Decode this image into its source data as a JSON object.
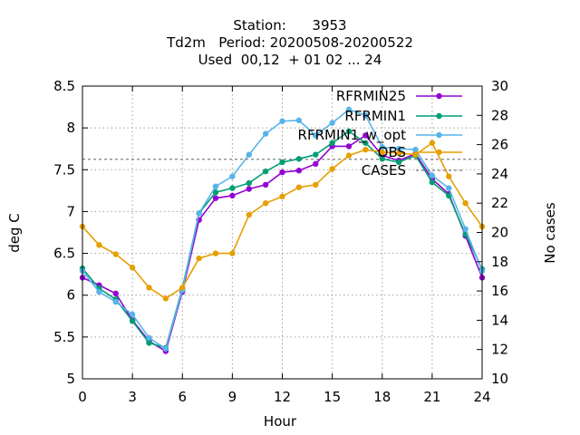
{
  "chart_data": {
    "type": "line",
    "title_lines": [
      "Station:      3953",
      "Td2m   Period: 20200508-20200522",
      "Used  00,12  + 01 02 ... 24"
    ],
    "xlabel": "Hour",
    "ylabel": "deg C",
    "y2label": "No cases",
    "xlim": [
      0,
      24
    ],
    "ylim": [
      5,
      8.5
    ],
    "y2lim": [
      10,
      30
    ],
    "xticks": [
      "0",
      "3",
      "6",
      "9",
      "12",
      "15",
      "18",
      "21",
      "24"
    ],
    "yticks": [
      "5",
      "5.5",
      "6",
      "6.5",
      "7",
      "7.5",
      "8",
      "8.5"
    ],
    "y2ticks": [
      "10",
      "12",
      "14",
      "16",
      "18",
      "20",
      "22",
      "24",
      "26",
      "28",
      "30"
    ],
    "grid": true,
    "legend_position": "top-right",
    "x": [
      0,
      1,
      2,
      3,
      4,
      5,
      6,
      7,
      8,
      9,
      10,
      11,
      12,
      13,
      14,
      15,
      16,
      17,
      18,
      19,
      20,
      21,
      22,
      23,
      24
    ],
    "series": [
      {
        "name": "RFRMIN25",
        "color": "#9400d3",
        "values": [
          6.21,
          6.12,
          6.02,
          5.7,
          5.45,
          5.33,
          6.04,
          6.9,
          7.16,
          7.19,
          7.27,
          7.32,
          7.47,
          7.49,
          7.57,
          7.78,
          7.78,
          7.91,
          7.67,
          7.61,
          7.69,
          7.39,
          7.21,
          6.71,
          6.21
        ]
      },
      {
        "name": "RFRMIN1",
        "color": "#009e73",
        "values": [
          6.32,
          6.08,
          5.95,
          5.69,
          5.43,
          5.37,
          6.08,
          6.98,
          7.23,
          7.28,
          7.34,
          7.48,
          7.59,
          7.63,
          7.68,
          7.82,
          7.96,
          7.82,
          7.63,
          7.59,
          7.67,
          7.35,
          7.19,
          6.73,
          6.31
        ]
      },
      {
        "name": "RFRMIN1_w_opt",
        "color": "#56b4e9",
        "values": [
          6.29,
          6.04,
          5.92,
          5.77,
          5.49,
          5.36,
          6.06,
          6.98,
          7.3,
          7.42,
          7.68,
          7.93,
          8.08,
          8.09,
          7.91,
          8.06,
          8.22,
          8.15,
          7.77,
          7.75,
          7.74,
          7.43,
          7.28,
          6.79,
          6.29
        ]
      },
      {
        "name": "OBS",
        "color": "#e69f00",
        "values": [
          6.82,
          6.6,
          6.49,
          6.33,
          6.09,
          5.96,
          6.09,
          6.44,
          6.5,
          6.5,
          6.96,
          7.1,
          7.18,
          7.29,
          7.32,
          7.51,
          7.67,
          7.74,
          7.71,
          7.7,
          7.68,
          7.82,
          7.42,
          7.1,
          6.82
        ]
      }
    ],
    "cases": {
      "name": "CASES",
      "color": "#808080",
      "axis": "y2",
      "values": [
        25,
        25,
        25,
        25,
        25,
        25,
        25,
        25,
        25,
        25,
        25,
        25,
        25,
        25,
        25,
        25,
        25,
        25,
        25,
        25,
        25,
        25,
        25,
        25,
        25
      ]
    },
    "legend": [
      {
        "label": "RFRMIN25"
      },
      {
        "label": "RFRMIN1"
      },
      {
        "label": "RFRMIN1_w_opt"
      },
      {
        "label": "OBS"
      },
      {
        "label": "CASES"
      }
    ]
  }
}
